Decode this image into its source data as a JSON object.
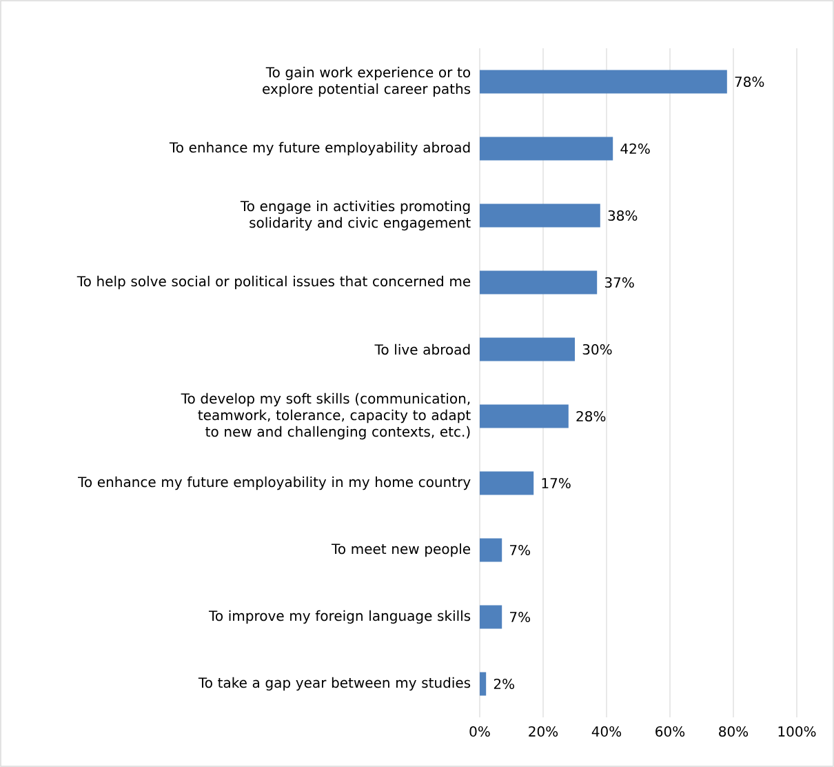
{
  "chart_data": {
    "type": "bar",
    "orientation": "horizontal",
    "categories": [
      "To gain work experience or to explore potential career paths",
      "To enhance my future employability abroad",
      "To engage in activities promoting solidarity and civic engagement",
      "To help solve social or political issues that concerned me",
      "To live abroad",
      "To develop my soft skills (communication, teamwork, tolerance, capacity to adapt to new and challenging contexts, etc.)",
      "To enhance my future employability in my home country",
      "To meet new people",
      "To improve my foreign language skills",
      "To take a gap year between my studies"
    ],
    "values": [
      78,
      42,
      38,
      37,
      30,
      28,
      17,
      7,
      7,
      2
    ],
    "value_labels": [
      "78%",
      "42%",
      "38%",
      "37%",
      "30%",
      "28%",
      "17%",
      "7%",
      "7%",
      "2%"
    ],
    "color": "#4f81bd",
    "xlim": [
      0,
      100
    ],
    "xticks": [
      {
        "value": 0,
        "label": "0%"
      },
      {
        "value": 20,
        "label": "20%"
      },
      {
        "value": 40,
        "label": "40%"
      },
      {
        "value": 60,
        "label": "60%"
      },
      {
        "value": 80,
        "label": "80%"
      },
      {
        "value": 100,
        "label": "100%"
      }
    ],
    "grid": "x"
  }
}
